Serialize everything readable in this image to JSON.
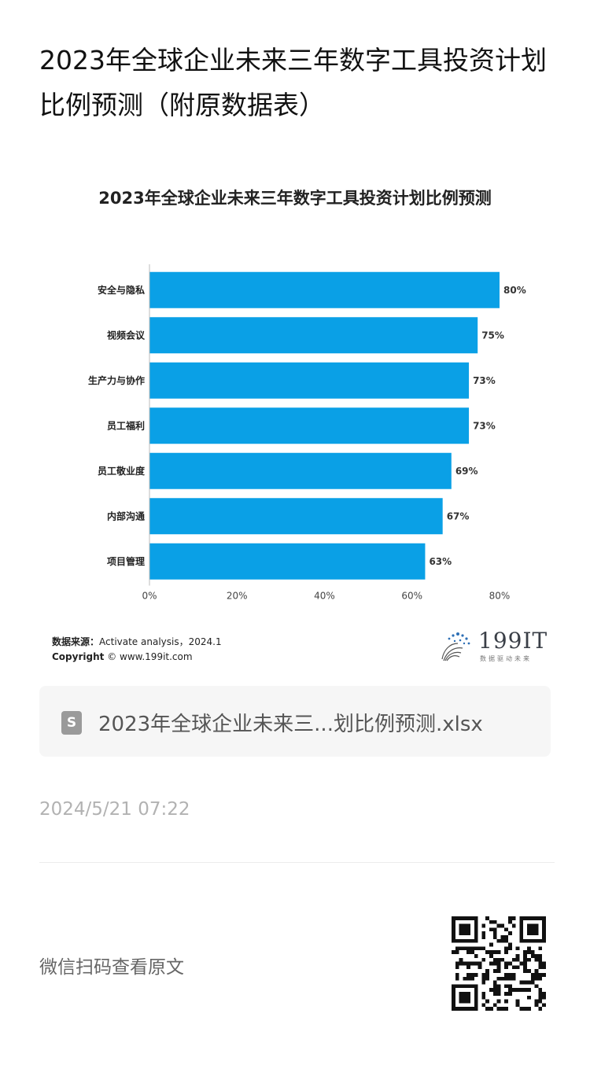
{
  "page": {
    "title": "2023年全球企业未来三年数字工具投资计划比例预测（附原数据表）"
  },
  "chart_data": {
    "type": "bar",
    "orientation": "horizontal",
    "title": "2023年全球企业未来三年数字工具投资计划比例预测",
    "categories": [
      "安全与隐私",
      "视频会议",
      "生产力与协作",
      "员工福利",
      "员工敬业度",
      "内部沟通",
      "项目管理"
    ],
    "values": [
      80,
      75,
      73,
      73,
      69,
      67,
      63
    ],
    "value_labels": [
      "80%",
      "75%",
      "73%",
      "73%",
      "69%",
      "67%",
      "63%"
    ],
    "xlim": [
      0,
      80
    ],
    "x_ticks": [
      "0%",
      "20%",
      "40%",
      "60%",
      "80%"
    ],
    "grid": false,
    "bar_color": "#0aa0e6"
  },
  "source": {
    "label": "数据来源：",
    "text": "Activate analysis，2024.1",
    "copyright_label": "Copyright",
    "copyright_text": "© www.199it.com"
  },
  "logo": {
    "name": "199IT",
    "tagline": "数据驱动未来"
  },
  "attachment": {
    "icon": "spreadsheet-file-icon",
    "icon_letter": "S",
    "file_name": "2023年全球企业未来三...划比例预测.xlsx"
  },
  "meta": {
    "timestamp": "2024/5/21 07:22"
  },
  "footer": {
    "scan_text": "微信扫码查看原文",
    "qr_icon": "qr-code-icon"
  }
}
